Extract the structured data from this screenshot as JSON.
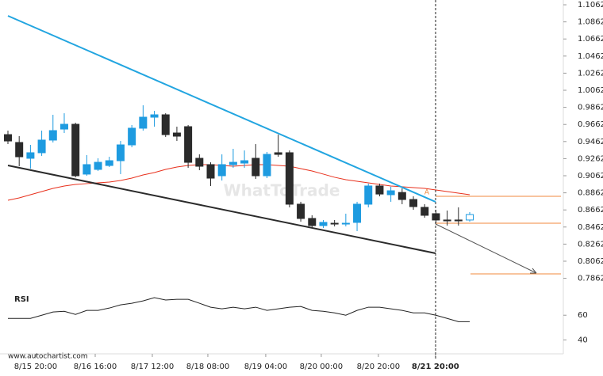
{
  "chart_data": {
    "type": "candlestick",
    "open": [
      0.9543,
      0.9451,
      0.9266,
      0.9331,
      0.9479,
      0.9608,
      0.9664,
      0.9081,
      0.9136,
      0.9182,
      0.9238,
      0.9423,
      0.9618,
      0.9747,
      0.9775,
      0.9562,
      0.9636,
      0.9266,
      0.9192,
      0.9062,
      0.9192,
      0.921,
      0.9266,
      0.9062,
      0.9331,
      0.9331,
      0.8729,
      0.8562,
      0.8479,
      0.8506,
      0.8497,
      0.8516,
      0.8729,
      0.8942,
      0.884,
      0.8866,
      0.8784,
      0.8692,
      0.8618,
      0.8544,
      0.8544,
      0.8544
    ],
    "high": [
      0.959,
      0.9525,
      0.9423,
      0.959,
      0.9775,
      0.9793,
      0.9682,
      0.9303,
      0.9266,
      0.9284,
      0.9469,
      0.9655,
      0.9886,
      0.9821,
      0.9793,
      0.9636,
      0.9655,
      0.9312,
      0.9219,
      0.9312,
      0.9377,
      0.9358,
      0.9432,
      0.934,
      0.9543,
      0.9358,
      0.8757,
      0.8599,
      0.8544,
      0.8544,
      0.8618,
      0.8757,
      0.897,
      0.897,
      0.8933,
      0.8914,
      0.8821,
      0.8729,
      0.8664,
      0.8655,
      0.8692,
      0.8636
    ],
    "low": [
      0.9432,
      0.9173,
      0.9145,
      0.9294,
      0.9451,
      0.9562,
      0.9043,
      0.9062,
      0.9118,
      0.9164,
      0.9081,
      0.9395,
      0.959,
      0.9636,
      0.9516,
      0.9469,
      0.9155,
      0.9127,
      0.8942,
      0.9006,
      0.9155,
      0.9155,
      0.9025,
      0.9034,
      0.9284,
      0.8692,
      0.8525,
      0.8451,
      0.8451,
      0.8469,
      0.8469,
      0.8414,
      0.8692,
      0.8821,
      0.8757,
      0.8729,
      0.8664,
      0.8571,
      0.8506,
      0.8479,
      0.8479,
      0.8525
    ],
    "close": [
      0.9469,
      0.9284,
      0.9331,
      0.9479,
      0.959,
      0.9664,
      0.9062,
      0.9192,
      0.9219,
      0.9238,
      0.9423,
      0.9618,
      0.9747,
      0.9775,
      0.9543,
      0.9525,
      0.9219,
      0.9173,
      0.9034,
      0.9192,
      0.9219,
      0.9238,
      0.9062,
      0.9312,
      0.9312,
      0.8729,
      0.8562,
      0.8479,
      0.8516,
      0.8497,
      0.8506,
      0.8729,
      0.8942,
      0.8848,
      0.8886,
      0.8784,
      0.8701,
      0.8599,
      0.8544,
      0.8534,
      0.8534,
      0.8608
    ],
    "up_color": "#1e9be0",
    "down_color": "#2b2b2b",
    "ma": {
      "color": "#e8301c",
      "values": [
        0.8775,
        0.8803,
        0.884,
        0.8877,
        0.8914,
        0.8942,
        0.896,
        0.897,
        0.8979,
        0.8988,
        0.9006,
        0.9034,
        0.9071,
        0.9099,
        0.9136,
        0.9164,
        0.9182,
        0.9192,
        0.9192,
        0.9182,
        0.9173,
        0.9182,
        0.9192,
        0.9192,
        0.9182,
        0.9173,
        0.9145,
        0.9118,
        0.9081,
        0.9044,
        0.9016,
        0.8997,
        0.8979,
        0.896,
        0.8942,
        0.8933,
        0.8923,
        0.8914,
        0.8895,
        0.8877,
        0.8858,
        0.884
      ]
    },
    "levels": {
      "color": "#f08a3c",
      "values": [
        0.8821,
        0.8506,
        0.7914
      ]
    },
    "ylim": [
      0.7784,
      1.1118
    ],
    "yticks": [
      0.7862,
      0.8062,
      0.8262,
      0.8462,
      0.8662,
      0.8862,
      0.9062,
      0.9262,
      0.9462,
      0.9662,
      0.9862,
      1.0062,
      1.0262,
      1.0462,
      1.0662,
      1.0862,
      1.1062
    ],
    "xlim": [
      0,
      41
    ],
    "xticks": [
      {
        "value": 2.46,
        "label": "8/15 20:00"
      },
      {
        "value": 7.75,
        "label": "8/16 16:00"
      },
      {
        "value": 12.82,
        "label": "8/17 12:00"
      },
      {
        "value": 17.75,
        "label": "8/18 08:00"
      },
      {
        "value": 22.89,
        "label": "8/19 04:00"
      },
      {
        "value": 27.82,
        "label": "8/20 00:00"
      },
      {
        "value": 32.89,
        "label": "8/20 20:00"
      },
      {
        "value": 37.96,
        "label": "8/21 20:00"
      }
    ],
    "rsi": {
      "title": "RSI",
      "values": [
        57.4,
        57.4,
        57.4,
        60,
        62.6,
        63.2,
        60.6,
        63.9,
        63.9,
        65.8,
        68.4,
        69.7,
        71.6,
        74.2,
        72.3,
        72.9,
        72.9,
        69.7,
        66.5,
        65.2,
        66.5,
        65.2,
        66.5,
        63.9,
        65.2,
        66.5,
        67.1,
        63.9,
        63.2,
        61.9,
        60,
        63.9,
        66.5,
        66.5,
        65.2,
        63.9,
        61.9,
        61.9,
        60,
        57.4,
        54.8,
        54.8
      ],
      "ylim": [
        30,
        81.3
      ],
      "yticks": [
        40,
        60
      ]
    },
    "annotation": "A",
    "watermark": "WhatToTrade",
    "source": "www.autochartist.com"
  }
}
